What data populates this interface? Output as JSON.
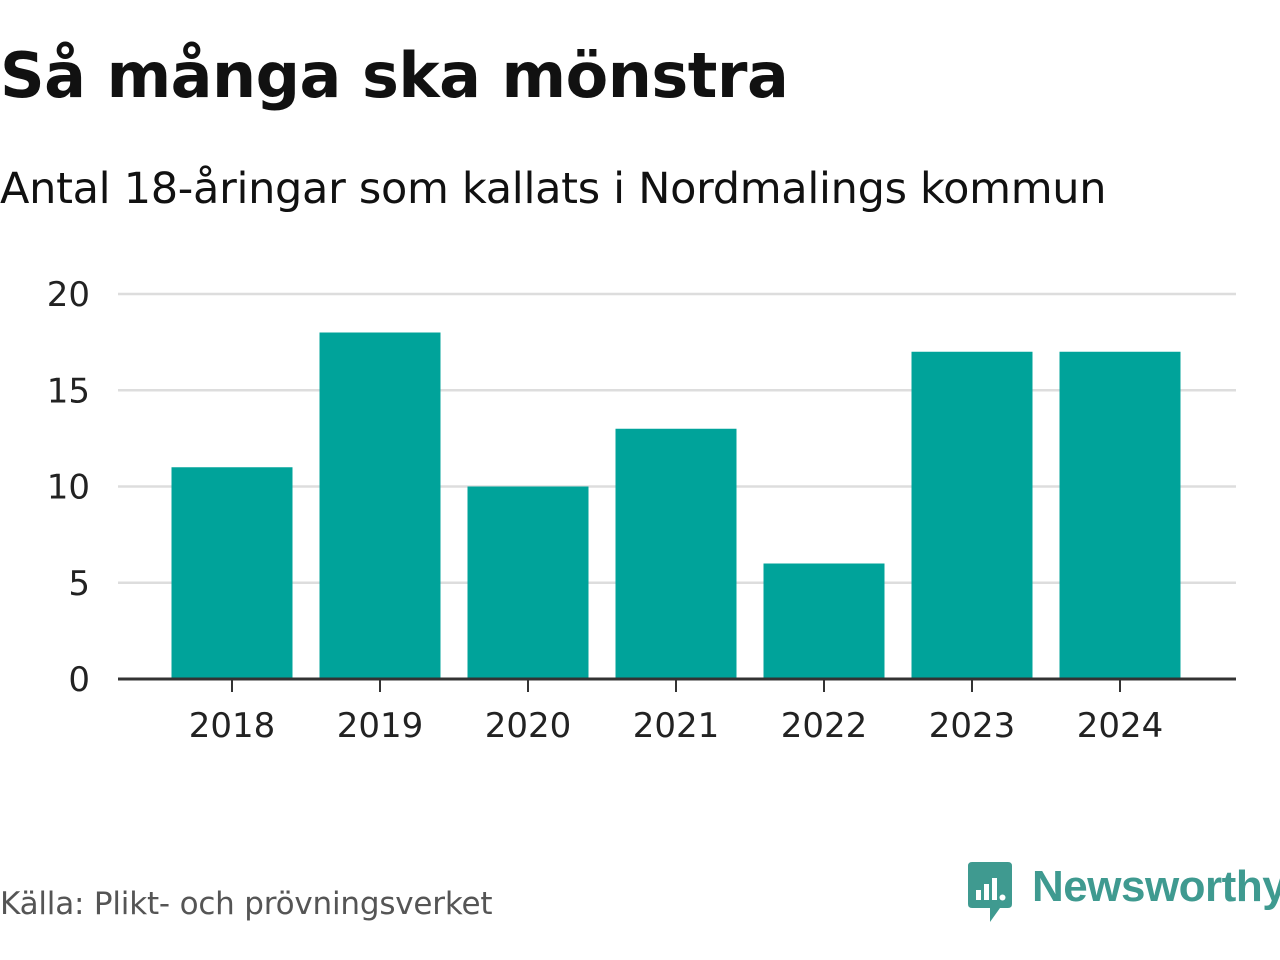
{
  "chart_data": {
    "type": "bar",
    "title": "Så många ska mönstra",
    "subtitle": "Antal 18-åringar som kallats i Nordmalings kommun",
    "categories": [
      "2018",
      "2019",
      "2020",
      "2021",
      "2022",
      "2023",
      "2024"
    ],
    "values": [
      11,
      18,
      10,
      13,
      6,
      17,
      17
    ],
    "xlabel": "",
    "ylabel": "",
    "ylim": [
      0,
      20
    ],
    "yticks": [
      0,
      5,
      10,
      15,
      20
    ],
    "grid": true,
    "bar_color": "#00a39a"
  },
  "footer": {
    "source": "Källa: Plikt- och prövningsverket",
    "brand": "Newsworthy",
    "brand_color": "#3f9a90",
    "brand_icon": "newsworthy-logo-icon"
  }
}
